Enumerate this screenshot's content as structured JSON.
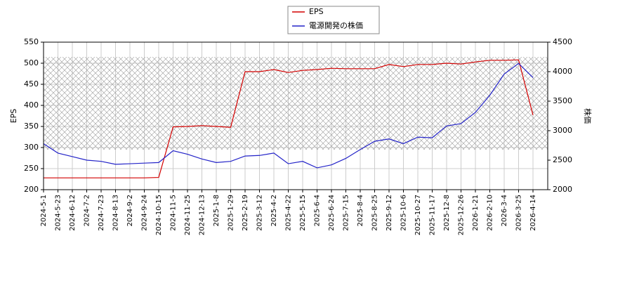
{
  "chart_data": {
    "type": "line",
    "categories": [
      "2024-5-1",
      "2024-5-23",
      "2024-6-12",
      "2024-7-2",
      "2024-7-23",
      "2024-8-13",
      "2024-9-2",
      "2024-9-24",
      "2024-10-15",
      "2024-11-5",
      "2024-11-25",
      "2024-12-13",
      "2025-1-8",
      "2025-1-29",
      "2025-2-19",
      "2025-3-12",
      "2025-4-2",
      "2025-4-22",
      "2025-5-15",
      "2025-6-4",
      "2025-6-24",
      "2025-7-15",
      "2025-8-4",
      "2025-8-25",
      "2025-9-12",
      "2025-10-6",
      "2025-10-27",
      "2025-11-17",
      "2025-12-8",
      "2025-12-26",
      "2026-1-21",
      "2026-2-10",
      "2026-3-4",
      "2026-3-25",
      "2026-4-14"
    ],
    "series": [
      {
        "name": "EPS",
        "color": "#d40000",
        "axis": "y",
        "values": [
          228,
          228,
          228,
          228,
          228,
          228,
          228,
          228,
          229,
          349,
          350,
          352,
          350,
          348,
          480,
          480,
          485,
          478,
          483,
          485,
          488,
          487,
          487,
          487,
          497,
          492,
          497,
          497,
          500,
          498,
          503,
          507,
          507,
          508,
          377
        ]
      },
      {
        "name": "電源開発の株価",
        "color": "#2323c8",
        "axis": "y2",
        "values": [
          2780,
          2620,
          2560,
          2500,
          2480,
          2430,
          2440,
          2450,
          2460,
          2660,
          2600,
          2520,
          2460,
          2480,
          2570,
          2580,
          2620,
          2440,
          2480,
          2370,
          2420,
          2530,
          2680,
          2820,
          2860,
          2780,
          2890,
          2880,
          3080,
          3120,
          3310,
          3600,
          3960,
          4140,
          3900
        ]
      }
    ],
    "ylabel": "EPS",
    "y2label": "株価",
    "ylim": [
      200,
      550
    ],
    "yticks": [
      200,
      250,
      300,
      350,
      400,
      450,
      500,
      550
    ],
    "y2lim": [
      2000,
      4500
    ],
    "y2ticks": [
      2000,
      2500,
      3000,
      3500,
      4000,
      4500
    ],
    "grid": true
  }
}
